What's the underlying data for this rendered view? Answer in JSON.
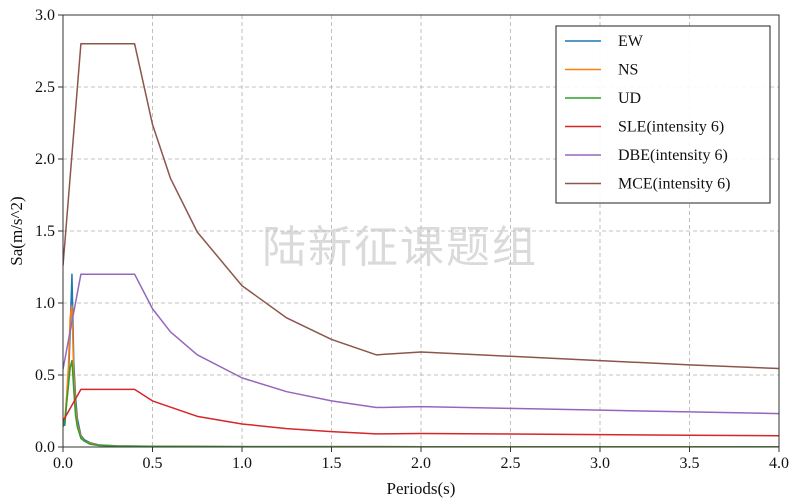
{
  "chart_data": {
    "type": "line",
    "title": "",
    "xlabel": "Periods(s)",
    "ylabel": "Sa(m/s^2)",
    "xlim": [
      0.0,
      4.0
    ],
    "ylim": [
      0.0,
      3.0
    ],
    "x_ticks": [
      "0.0",
      "0.5",
      "1.0",
      "1.5",
      "2.0",
      "2.5",
      "3.0",
      "3.5",
      "4.0"
    ],
    "y_ticks": [
      "0.0",
      "0.5",
      "1.0",
      "1.5",
      "2.0",
      "2.5",
      "3.0"
    ],
    "grid": true,
    "legend_position": "top-right",
    "watermark": "陆新征课题组",
    "series": [
      {
        "name": "EW",
        "color": "#1f77b4",
        "points": [
          [
            0.0,
            0.2
          ],
          [
            0.01,
            0.15
          ],
          [
            0.02,
            0.3
          ],
          [
            0.03,
            0.45
          ],
          [
            0.04,
            0.8
          ],
          [
            0.05,
            1.2
          ],
          [
            0.06,
            0.6
          ],
          [
            0.07,
            0.35
          ],
          [
            0.08,
            0.2
          ],
          [
            0.1,
            0.08
          ],
          [
            0.12,
            0.05
          ],
          [
            0.15,
            0.03
          ],
          [
            0.2,
            0.015
          ],
          [
            0.3,
            0.008
          ],
          [
            0.5,
            0.005
          ],
          [
            1.0,
            0.003
          ],
          [
            2.0,
            0.002
          ],
          [
            4.0,
            0.001
          ]
        ]
      },
      {
        "name": "NS",
        "color": "#ff7f0e",
        "points": [
          [
            0.0,
            0.2
          ],
          [
            0.01,
            0.18
          ],
          [
            0.02,
            0.35
          ],
          [
            0.03,
            0.55
          ],
          [
            0.04,
            0.9
          ],
          [
            0.05,
            0.98
          ],
          [
            0.06,
            0.5
          ],
          [
            0.07,
            0.28
          ],
          [
            0.08,
            0.16
          ],
          [
            0.1,
            0.07
          ],
          [
            0.12,
            0.04
          ],
          [
            0.15,
            0.025
          ],
          [
            0.2,
            0.012
          ],
          [
            0.3,
            0.007
          ],
          [
            0.5,
            0.004
          ],
          [
            1.0,
            0.003
          ],
          [
            2.0,
            0.002
          ],
          [
            4.0,
            0.001
          ]
        ]
      },
      {
        "name": "UD",
        "color": "#2ca02c",
        "points": [
          [
            0.0,
            0.14
          ],
          [
            0.01,
            0.18
          ],
          [
            0.02,
            0.3
          ],
          [
            0.03,
            0.42
          ],
          [
            0.04,
            0.55
          ],
          [
            0.05,
            0.6
          ],
          [
            0.06,
            0.4
          ],
          [
            0.07,
            0.22
          ],
          [
            0.08,
            0.14
          ],
          [
            0.1,
            0.06
          ],
          [
            0.12,
            0.04
          ],
          [
            0.15,
            0.02
          ],
          [
            0.2,
            0.01
          ],
          [
            0.3,
            0.006
          ],
          [
            0.5,
            0.004
          ],
          [
            1.0,
            0.002
          ],
          [
            2.0,
            0.001
          ],
          [
            4.0,
            0.001
          ]
        ]
      },
      {
        "name": "SLE(intensity 6)",
        "color": "#d62728",
        "points": [
          [
            0.0,
            0.18
          ],
          [
            0.1,
            0.4
          ],
          [
            0.4,
            0.4
          ],
          [
            0.5,
            0.32
          ],
          [
            0.75,
            0.213
          ],
          [
            1.0,
            0.16
          ],
          [
            1.25,
            0.128
          ],
          [
            1.5,
            0.107
          ],
          [
            1.75,
            0.091
          ],
          [
            2.0,
            0.094
          ],
          [
            2.5,
            0.09
          ],
          [
            3.0,
            0.086
          ],
          [
            3.5,
            0.082
          ],
          [
            4.0,
            0.078
          ]
        ]
      },
      {
        "name": "DBE(intensity 6)",
        "color": "#9467bd",
        "points": [
          [
            0.0,
            0.54
          ],
          [
            0.1,
            1.2
          ],
          [
            0.4,
            1.2
          ],
          [
            0.5,
            0.96
          ],
          [
            0.6,
            0.8
          ],
          [
            0.75,
            0.64
          ],
          [
            1.0,
            0.48
          ],
          [
            1.25,
            0.384
          ],
          [
            1.5,
            0.32
          ],
          [
            1.75,
            0.274
          ],
          [
            2.0,
            0.28
          ],
          [
            2.5,
            0.268
          ],
          [
            3.0,
            0.256
          ],
          [
            3.5,
            0.244
          ],
          [
            4.0,
            0.232
          ]
        ]
      },
      {
        "name": "MCE(intensity 6)",
        "color": "#8c564b",
        "points": [
          [
            0.0,
            1.26
          ],
          [
            0.1,
            2.8
          ],
          [
            0.4,
            2.8
          ],
          [
            0.5,
            2.24
          ],
          [
            0.6,
            1.867
          ],
          [
            0.75,
            1.493
          ],
          [
            1.0,
            1.12
          ],
          [
            1.25,
            0.896
          ],
          [
            1.5,
            0.747
          ],
          [
            1.75,
            0.64
          ],
          [
            2.0,
            0.66
          ],
          [
            2.5,
            0.63
          ],
          [
            3.0,
            0.6
          ],
          [
            3.5,
            0.57
          ],
          [
            4.0,
            0.545
          ]
        ]
      }
    ]
  }
}
